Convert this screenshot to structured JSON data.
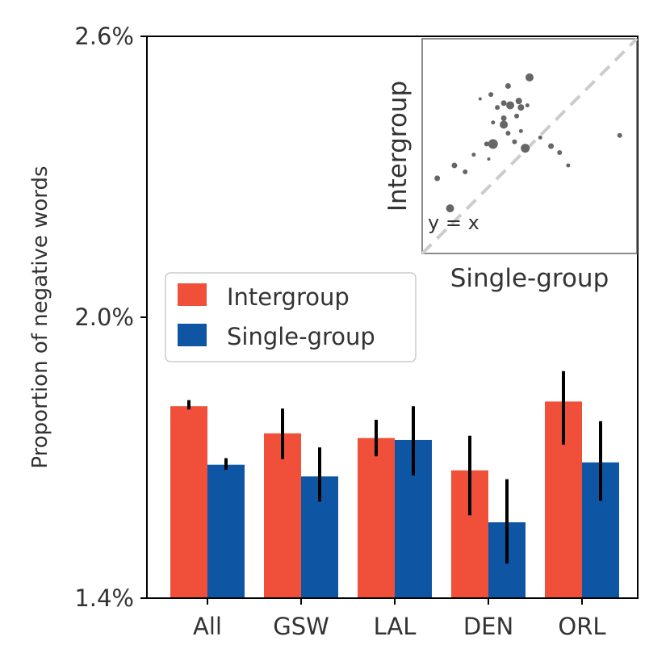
{
  "chart_data": {
    "type": "bar",
    "title": "",
    "xlabel": "",
    "ylabel": "Proportion of negative words",
    "ylim": [
      0.014,
      0.026
    ],
    "yticks": [
      0.014,
      0.02,
      0.026
    ],
    "yticklabels": [
      "1.4%",
      "2.0%",
      "2.6%"
    ],
    "categories": [
      "All",
      "GSW",
      "LAL",
      "DEN",
      "ORL"
    ],
    "series": [
      {
        "name": "Intergroup",
        "color": "#f05039",
        "values": [
          0.0181,
          0.01752,
          0.01742,
          0.01673,
          0.0182
        ],
        "err_low": [
          0.01803,
          0.01697,
          0.01703,
          0.01577,
          0.01728
        ],
        "err_high": [
          0.01823,
          0.01805,
          0.01781,
          0.01747,
          0.01885
        ]
      },
      {
        "name": "Single-group",
        "color": "#0e56a3",
        "values": [
          0.01685,
          0.0166,
          0.01738,
          0.01562,
          0.0169
        ],
        "err_low": [
          0.01674,
          0.01606,
          0.01662,
          0.01474,
          0.01608
        ],
        "err_high": [
          0.01699,
          0.01722,
          0.0181,
          0.01654,
          0.01778
        ]
      }
    ],
    "legend": {
      "position": "center-left",
      "entries": [
        "Intergroup",
        "Single-group"
      ]
    },
    "grid": false,
    "inset": {
      "type": "scatter",
      "xlabel": "Single-group",
      "ylabel": "Intergroup",
      "annotation": "y = x",
      "reference_line": "y = x",
      "point_color": "#666666",
      "xlim": [
        0,
        1
      ],
      "ylim": [
        0,
        1
      ],
      "points": [
        {
          "x": 0.5,
          "y": 0.82,
          "size": 5.0
        },
        {
          "x": 0.4,
          "y": 0.78,
          "size": 3.5
        },
        {
          "x": 0.45,
          "y": 0.71,
          "size": 4.0
        },
        {
          "x": 0.41,
          "y": 0.69,
          "size": 5.0
        },
        {
          "x": 0.38,
          "y": 0.7,
          "size": 3.5
        },
        {
          "x": 0.35,
          "y": 0.68,
          "size": 3.0
        },
        {
          "x": 0.46,
          "y": 0.68,
          "size": 4.0
        },
        {
          "x": 0.44,
          "y": 0.64,
          "size": 3.0
        },
        {
          "x": 0.38,
          "y": 0.63,
          "size": 3.5
        },
        {
          "x": 0.38,
          "y": 0.6,
          "size": 5.0
        },
        {
          "x": 0.33,
          "y": 0.61,
          "size": 2.5
        },
        {
          "x": 0.27,
          "y": 0.72,
          "size": 2.0
        },
        {
          "x": 0.32,
          "y": 0.74,
          "size": 3.0
        },
        {
          "x": 0.49,
          "y": 0.69,
          "size": 2.5
        },
        {
          "x": 0.4,
          "y": 0.56,
          "size": 3.0
        },
        {
          "x": 0.33,
          "y": 0.51,
          "size": 6.0
        },
        {
          "x": 0.43,
          "y": 0.52,
          "size": 3.0
        },
        {
          "x": 0.48,
          "y": 0.49,
          "size": 5.5
        },
        {
          "x": 0.3,
          "y": 0.51,
          "size": 3.0
        },
        {
          "x": 0.24,
          "y": 0.46,
          "size": 2.5
        },
        {
          "x": 0.15,
          "y": 0.41,
          "size": 3.5
        },
        {
          "x": 0.31,
          "y": 0.44,
          "size": 2.0
        },
        {
          "x": 0.2,
          "y": 0.38,
          "size": 3.0
        },
        {
          "x": 0.6,
          "y": 0.5,
          "size": 3.5
        },
        {
          "x": 0.64,
          "y": 0.47,
          "size": 3.0
        },
        {
          "x": 0.55,
          "y": 0.54,
          "size": 2.5
        },
        {
          "x": 0.46,
          "y": 0.57,
          "size": 2.5
        },
        {
          "x": 0.68,
          "y": 0.41,
          "size": 2.5
        },
        {
          "x": 0.92,
          "y": 0.55,
          "size": 3.0
        },
        {
          "x": 0.07,
          "y": 0.35,
          "size": 3.5
        },
        {
          "x": 0.13,
          "y": 0.21,
          "size": 5.0
        }
      ]
    }
  }
}
